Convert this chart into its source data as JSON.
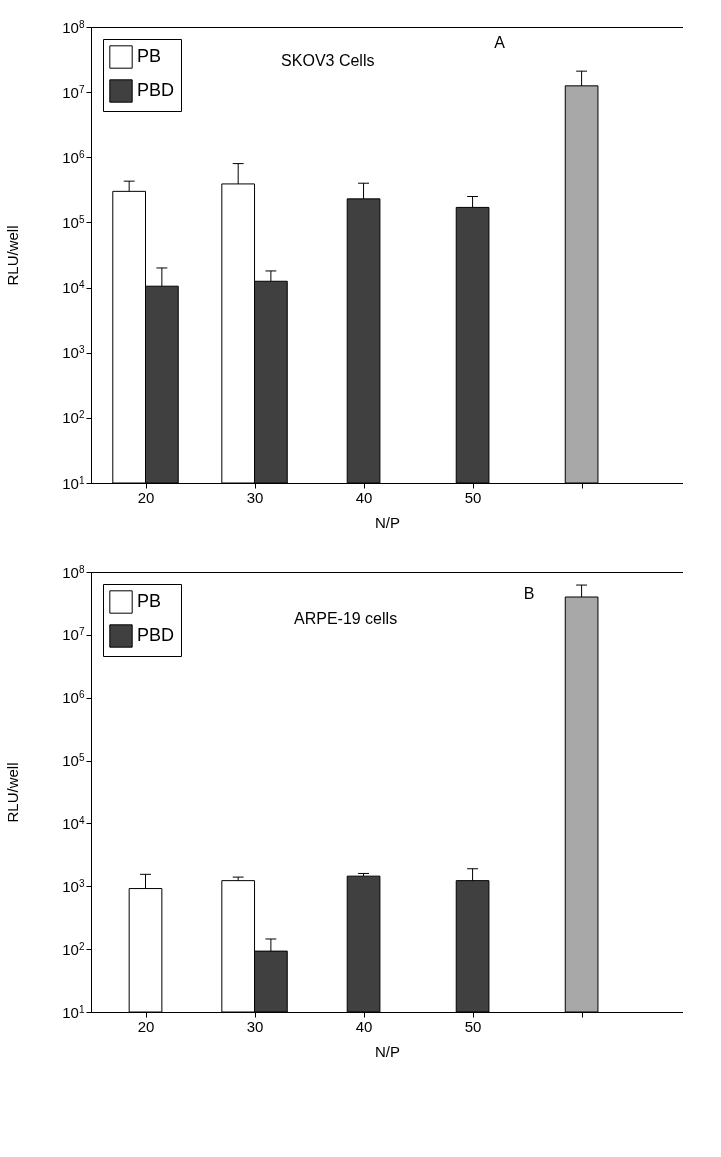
{
  "chart_data": [
    {
      "type": "bar",
      "xlabel": "N/P",
      "ylabel": "RLU/well",
      "categories": [
        "20",
        "30",
        "40",
        "50",
        null
      ],
      "log": true,
      "legend": "top left",
      "ylim": [
        10,
        100000000
      ],
      "yticks": [
        {
          "value": 10,
          "label": "10$^{1}$"
        },
        {
          "value": 100,
          "label": "10$^{2}$"
        },
        {
          "value": 1000,
          "label": "10$^{3}$"
        },
        {
          "value": 10000,
          "label": "10$^{4}$"
        },
        {
          "value": 100000,
          "label": "10$^{5}$"
        },
        {
          "value": 1000000,
          "label": "10$^{6}$"
        },
        {
          "value": 10000000,
          "label": "10$^{7}$"
        },
        {
          "value": 100000000,
          "label": "10$^{8}$"
        }
      ],
      "annotations": [
        "SKOV3 Cells",
        "A"
      ],
      "series": [
        {
          "name": "PB",
          "color": "#ffffff",
          "values": [
            300000,
            390000,
            null,
            null,
            null
          ],
          "errors": [
            [
              300000,
              430000
            ],
            [
              390000,
              800000
            ],
            null,
            null,
            null
          ]
        },
        {
          "name": "PBD",
          "color": "#404040",
          "values": [
            10500,
            12500,
            230000,
            170000,
            null
          ],
          "errors": [
            [
              10500,
              20000
            ],
            [
              12500,
              18000
            ],
            [
              230000,
              400000
            ],
            [
              170000,
              250000
            ],
            null
          ]
        },
        {
          "color": "#a8a8a8",
          "values": [
            null,
            null,
            null,
            null,
            12500000
          ],
          "errors": [
            null,
            null,
            null,
            null,
            [
              12500000,
              21000000
            ]
          ]
        }
      ]
    },
    {
      "type": "bar",
      "xlabel": "N/P",
      "ylabel": "RLU/well",
      "categories": [
        "20",
        "30",
        "40",
        "50",
        null
      ],
      "log": true,
      "legend": "top left",
      "ylim": [
        10,
        100000000
      ],
      "yticks": [
        {
          "value": 10,
          "label": "10$^{1}$"
        },
        {
          "value": 100,
          "label": "10$^{2}$"
        },
        {
          "value": 1000,
          "label": "10$^{3}$"
        },
        {
          "value": 10000,
          "label": "10$^{4}$"
        },
        {
          "value": 100000,
          "label": "10$^{5}$"
        },
        {
          "value": 1000000,
          "label": "10$^{6}$"
        },
        {
          "value": 10000000,
          "label": "10$^{7}$"
        },
        {
          "value": 100000000,
          "label": "10$^{8}$"
        }
      ],
      "annotations": [
        "ARPE-19 cells",
        "B"
      ],
      "series": [
        {
          "name": "PB",
          "color": "#ffffff",
          "values": [
            920,
            1230,
            null,
            null,
            null
          ],
          "errors": [
            [
              920,
              1550
            ],
            [
              1230,
              1400
            ],
            null,
            null,
            null
          ]
        },
        {
          "name": "PBD",
          "color": "#404040",
          "values": [
            null,
            93,
            1450,
            1230,
            null
          ],
          "errors": [
            null,
            [
              93,
              145
            ],
            [
              1450,
              1600
            ],
            [
              1230,
              1900
            ],
            null
          ]
        },
        {
          "color": "#a8a8a8",
          "values": [
            null,
            null,
            null,
            null,
            40000000
          ],
          "errors": [
            null,
            null,
            null,
            null,
            [
              40000000,
              62000000
            ]
          ]
        }
      ]
    }
  ]
}
